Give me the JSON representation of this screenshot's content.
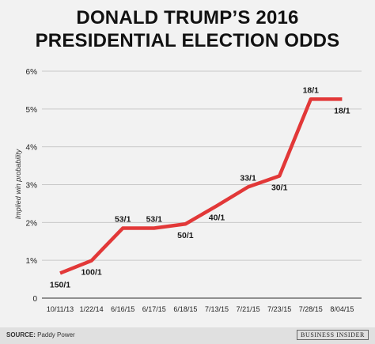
{
  "title_line1": "DONALD TRUMP’S 2016",
  "title_line2": "PRESIDENTIAL ELECTION ODDS",
  "footer": {
    "source_label": "SOURCE:",
    "source_text": "Paddy Power",
    "brand": "BUSINESS INSIDER"
  },
  "colors": {
    "line": "#e23838",
    "grid": "#c8c8c8",
    "background": "#f2f2f2"
  },
  "chart_data": {
    "type": "line",
    "title": "DONALD TRUMP’S 2016 PRESIDENTIAL ELECTION ODDS",
    "xlabel": "",
    "ylabel": "Implied win probability",
    "categories": [
      "10/11/13",
      "1/22/14",
      "6/16/15",
      "6/17/15",
      "6/18/15",
      "7/13/15",
      "7/21/15",
      "7/23/15",
      "7/28/15",
      "8/04/15"
    ],
    "yticks": [
      "0",
      "1%",
      "2%",
      "3%",
      "4%",
      "5%",
      "6%"
    ],
    "ylim": [
      0,
      6
    ],
    "grid": true,
    "series": [
      {
        "values": [
          0.66,
          0.99,
          1.85,
          1.85,
          1.96,
          2.44,
          2.94,
          3.23,
          5.26,
          5.26
        ],
        "labels": [
          "150/1",
          "100/1",
          "53/1",
          "53/1",
          "50/1",
          "40/1",
          "33/1",
          "30/1",
          "18/1",
          "18/1"
        ],
        "label_positions": [
          "below",
          "below",
          "above",
          "above",
          "below",
          "below",
          "above",
          "below",
          "above",
          "below"
        ]
      }
    ]
  }
}
